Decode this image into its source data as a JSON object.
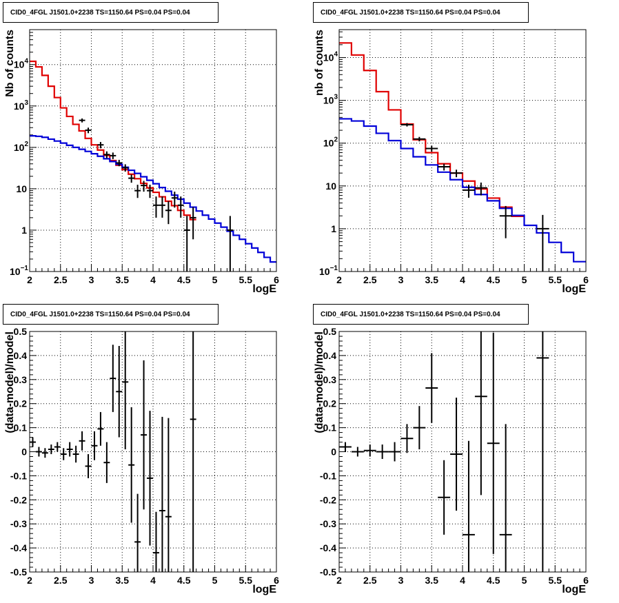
{
  "chart_data": [
    {
      "type": "line",
      "title": "CID0_4FGL J1501.0+2238 TS=1150.64 PS=0.04 PS=0.04",
      "xlabel": "logE",
      "ylabel": "Nb of counts",
      "xlim": [
        2,
        6
      ],
      "ylim": [
        0.1,
        70000
      ],
      "yscale": "log",
      "grid": true,
      "x_ticks": [
        "2",
        "2.5",
        "3",
        "3.5",
        "4",
        "4.5",
        "5",
        "5.5",
        "6"
      ],
      "y_ticks": [
        {
          "value": 0.1,
          "base": "10",
          "exp": "−1"
        },
        {
          "value": 1,
          "label": "1"
        },
        {
          "value": 10,
          "label": "10"
        },
        {
          "value": 100,
          "base": "10",
          "exp": "2"
        },
        {
          "value": 1000,
          "base": "10",
          "exp": "3"
        },
        {
          "value": 10000,
          "base": "10",
          "exp": "4"
        }
      ],
      "bin_edges": [
        2.0,
        2.1,
        2.2,
        2.3,
        2.4,
        2.5,
        2.6,
        2.7,
        2.8,
        2.9,
        3.0,
        3.1,
        3.2,
        3.3,
        3.4,
        3.5,
        3.6,
        3.7,
        3.8,
        3.9,
        4.0,
        4.1,
        4.2,
        4.3,
        4.4,
        4.5,
        4.6,
        4.7,
        4.8,
        4.9,
        5.0,
        5.1,
        5.2,
        5.3,
        5.4,
        5.5,
        5.6,
        5.7,
        5.8,
        5.9,
        6.0
      ],
      "series": [
        {
          "color": "#e00000",
          "step": true,
          "values": [
            12000,
            8800,
            5500,
            3000,
            1600,
            900,
            560,
            360,
            250,
            165,
            115,
            86,
            64,
            48,
            37,
            29,
            22.5,
            17.5,
            13.5,
            10.5,
            8.2,
            6.4,
            5.0,
            3.9,
            3.0,
            2.3,
            1.8
          ]
        },
        {
          "color": "#0000d8",
          "step": true,
          "values": [
            190,
            185,
            175,
            158,
            142,
            127,
            112,
            100,
            90,
            80,
            70,
            61,
            53,
            45.5,
            39,
            33,
            28,
            23.5,
            19.5,
            16,
            13.2,
            10.7,
            8.7,
            7.0,
            5.6,
            4.5,
            3.6,
            2.9,
            2.3,
            1.85,
            1.48,
            1.18,
            0.94,
            0.75,
            0.6,
            0.47,
            0.37,
            0.29,
            0.22,
            0.17
          ]
        }
      ],
      "points": [
        {
          "x": 2.85,
          "y": 450,
          "ylo": 400,
          "yhi": 500
        },
        {
          "x": 2.95,
          "y": 260,
          "ylo": 220,
          "yhi": 300
        },
        {
          "x": 3.15,
          "y": 115,
          "ylo": 95,
          "yhi": 135
        },
        {
          "x": 3.25,
          "y": 67,
          "ylo": 55,
          "yhi": 80
        },
        {
          "x": 3.35,
          "y": 63,
          "ylo": 52,
          "yhi": 75
        },
        {
          "x": 3.45,
          "y": 42,
          "ylo": 35,
          "yhi": 50
        },
        {
          "x": 3.55,
          "y": 32,
          "ylo": 26,
          "yhi": 39
        },
        {
          "x": 3.65,
          "y": 18,
          "ylo": 14,
          "yhi": 22
        },
        {
          "x": 3.75,
          "y": 9,
          "ylo": 6,
          "yhi": 12.5
        },
        {
          "x": 3.85,
          "y": 12,
          "ylo": 8.5,
          "yhi": 15.5
        },
        {
          "x": 3.95,
          "y": 9,
          "ylo": 6,
          "yhi": 12.5
        },
        {
          "x": 4.05,
          "y": 4,
          "ylo": 2,
          "yhi": 6.5
        },
        {
          "x": 4.15,
          "y": 4,
          "ylo": 2,
          "yhi": 6.5
        },
        {
          "x": 4.25,
          "y": 3,
          "ylo": 1.4,
          "yhi": 5
        },
        {
          "x": 4.35,
          "y": 6,
          "ylo": 3.5,
          "yhi": 8.5
        },
        {
          "x": 4.45,
          "y": 4,
          "ylo": 2,
          "yhi": 6.5
        },
        {
          "x": 4.55,
          "y": 1,
          "ylo": 0.1,
          "yhi": 2.2
        },
        {
          "x": 4.65,
          "y": 2,
          "ylo": 0.6,
          "yhi": 3.6
        },
        {
          "x": 5.25,
          "y": 1,
          "ylo": 0.1,
          "yhi": 2.2
        }
      ]
    },
    {
      "type": "line",
      "title": "CID0_4FGL J1501.0+2238 TS=1150.64 PS=0.04 PS=0.04",
      "xlabel": "logE",
      "ylabel": "nb of counts",
      "xlim": [
        2,
        6
      ],
      "ylim": [
        0.1,
        45000
      ],
      "yscale": "log",
      "grid": true,
      "x_ticks": [
        "2",
        "2.5",
        "3",
        "3.5",
        "4",
        "4.5",
        "5",
        "5.5",
        "6"
      ],
      "y_ticks": [
        {
          "value": 0.1,
          "base": "10",
          "exp": "−1"
        },
        {
          "value": 1,
          "label": "1"
        },
        {
          "value": 10,
          "label": "10"
        },
        {
          "value": 100,
          "base": "10",
          "exp": "2"
        },
        {
          "value": 1000,
          "base": "10",
          "exp": "3"
        },
        {
          "value": 10000,
          "base": "10",
          "exp": "4"
        }
      ],
      "bin_edges": [
        2.0,
        2.2,
        2.4,
        2.6,
        2.8,
        3.0,
        3.2,
        3.4,
        3.6,
        3.8,
        4.0,
        4.2,
        4.4,
        4.6,
        4.8,
        5.0,
        5.2,
        5.4,
        5.6,
        5.8,
        6.0
      ],
      "series": [
        {
          "color": "#e00000",
          "step": true,
          "values": [
            22000,
            11500,
            5000,
            1600,
            600,
            280,
            120,
            60,
            33,
            20,
            13,
            8.5,
            5.2,
            3.2,
            1.95
          ]
        },
        {
          "color": "#0000d8",
          "step": true,
          "values": [
            370,
            330,
            250,
            170,
            115,
            75,
            48,
            31,
            21,
            14,
            9.3,
            6.3,
            4.5,
            3.0,
            2.05,
            1.2,
            0.8,
            0.48,
            0.28,
            0.17
          ]
        }
      ],
      "points": [
        {
          "x": 3.1,
          "y": 270,
          "ylo": 245,
          "yhi": 295
        },
        {
          "x": 3.3,
          "y": 125,
          "ylo": 110,
          "yhi": 140
        },
        {
          "x": 3.5,
          "y": 75,
          "ylo": 63,
          "yhi": 87
        },
        {
          "x": 3.7,
          "y": 28,
          "ylo": 23,
          "yhi": 33
        },
        {
          "x": 3.9,
          "y": 20,
          "ylo": 16,
          "yhi": 24
        },
        {
          "x": 4.1,
          "y": 8,
          "ylo": 5.3,
          "yhi": 10.7
        },
        {
          "x": 4.3,
          "y": 9,
          "ylo": 6,
          "yhi": 12
        },
        {
          "x": 4.7,
          "y": 2,
          "ylo": 0.6,
          "yhi": 3.4
        },
        {
          "x": 5.3,
          "y": 1,
          "ylo": 0.1,
          "yhi": 2.1
        }
      ]
    },
    {
      "type": "scatter",
      "title": "CID0_4FGL J1501.0+2238 TS=1150.64 PS=0.04 PS=0.04",
      "xlabel": "logE",
      "ylabel": "(data-model)/model",
      "xlim": [
        2,
        6
      ],
      "ylim": [
        -0.5,
        0.5
      ],
      "grid": true,
      "x_ticks": [
        "2",
        "2.5",
        "3",
        "3.5",
        "4",
        "4.5",
        "5",
        "5.5",
        "6"
      ],
      "y_ticks": [
        "0.5",
        "0.4",
        "0.3",
        "0.2",
        "0.1",
        "0",
        "-0.1",
        "-0.2",
        "-0.3",
        "-0.4",
        "-0.5"
      ],
      "binwidth": 0.1,
      "points": [
        {
          "x": 2.05,
          "y": 0.04,
          "err": 0.02
        },
        {
          "x": 2.15,
          "y": 0.0,
          "err": 0.02
        },
        {
          "x": 2.25,
          "y": -0.005,
          "err": 0.02
        },
        {
          "x": 2.35,
          "y": 0.01,
          "err": 0.02
        },
        {
          "x": 2.45,
          "y": 0.02,
          "err": 0.02
        },
        {
          "x": 2.55,
          "y": -0.01,
          "err": 0.025
        },
        {
          "x": 2.65,
          "y": 0.01,
          "err": 0.03
        },
        {
          "x": 2.75,
          "y": -0.01,
          "err": 0.035
        },
        {
          "x": 2.85,
          "y": 0.045,
          "err": 0.04
        },
        {
          "x": 2.95,
          "y": -0.06,
          "err": 0.05
        },
        {
          "x": 3.05,
          "y": 0.025,
          "err": 0.06
        },
        {
          "x": 3.15,
          "y": 0.095,
          "err": 0.07
        },
        {
          "x": 3.25,
          "y": -0.045,
          "err": 0.085
        },
        {
          "x": 3.35,
          "y": 0.305,
          "err": 0.14
        },
        {
          "x": 3.45,
          "y": 0.25,
          "err": 0.19
        },
        {
          "x": 3.55,
          "y": 0.29,
          "err": 0.28
        },
        {
          "x": 3.65,
          "y": -0.055,
          "err": 0.24
        },
        {
          "x": 3.75,
          "y": -0.375,
          "err": 0.2
        },
        {
          "x": 3.85,
          "y": 0.07,
          "err": 0.31
        },
        {
          "x": 3.95,
          "y": -0.11,
          "err": 0.28
        },
        {
          "x": 4.05,
          "y": -0.42,
          "err": 0.17
        },
        {
          "x": 4.15,
          "y": -0.245,
          "err": 0.39
        },
        {
          "x": 4.25,
          "y": -0.27,
          "err": 0.41
        },
        {
          "x": 4.65,
          "y": 0.135,
          "err": 0.72
        }
      ]
    },
    {
      "type": "scatter",
      "title": "CID0_4FGL J1501.0+2238 TS=1150.64 PS=0.04 PS=0.04",
      "xlabel": "logE",
      "ylabel": "(data-model)/model",
      "xlim": [
        2,
        6
      ],
      "ylim": [
        -0.5,
        0.5
      ],
      "grid": true,
      "x_ticks": [
        "2",
        "2.5",
        "3",
        "3.5",
        "4",
        "4.5",
        "5",
        "5.5",
        "6"
      ],
      "y_ticks": [
        "0.5",
        "0.4",
        "0.3",
        "0.2",
        "0.1",
        "0",
        "-0.1",
        "-0.2",
        "-0.3",
        "-0.4",
        "-0.5"
      ],
      "binwidth": 0.2,
      "points": [
        {
          "x": 2.1,
          "y": 0.02,
          "err": 0.02
        },
        {
          "x": 2.3,
          "y": 0.0,
          "err": 0.02
        },
        {
          "x": 2.5,
          "y": 0.005,
          "err": 0.025
        },
        {
          "x": 2.7,
          "y": 0.0,
          "err": 0.03
        },
        {
          "x": 2.9,
          "y": 0.0,
          "err": 0.04
        },
        {
          "x": 3.1,
          "y": 0.055,
          "err": 0.06
        },
        {
          "x": 3.3,
          "y": 0.1,
          "err": 0.09
        },
        {
          "x": 3.5,
          "y": 0.265,
          "err": 0.145
        },
        {
          "x": 3.7,
          "y": -0.19,
          "err": 0.155
        },
        {
          "x": 3.9,
          "y": -0.01,
          "err": 0.235
        },
        {
          "x": 4.1,
          "y": -0.345,
          "err": 0.39
        },
        {
          "x": 4.3,
          "y": 0.23,
          "err": 0.41
        },
        {
          "x": 4.5,
          "y": 0.035,
          "err": 0.46
        },
        {
          "x": 4.7,
          "y": -0.345,
          "err": 0.46
        },
        {
          "x": 5.3,
          "y": 0.39,
          "err": 0.9
        }
      ]
    }
  ]
}
